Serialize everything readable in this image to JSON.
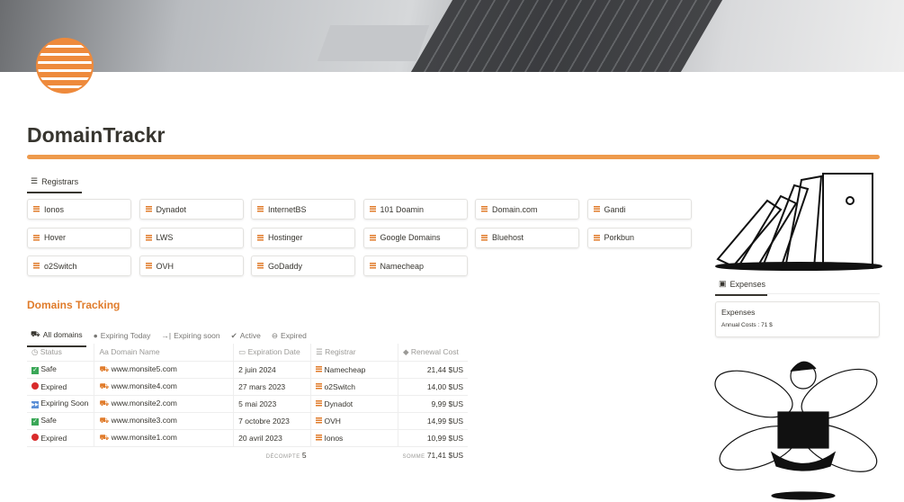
{
  "title": "DomainTrackr",
  "registrars": {
    "tab_label": "Registrars",
    "items": [
      "Ionos",
      "Dynadot",
      "InternetBS",
      "101 Doamin",
      "Domain.com",
      "Gandi",
      "Hover",
      "LWS",
      "Hostinger",
      "Google Domains",
      "Bluehost",
      "Porkbun",
      "o2Switch",
      "OVH",
      "GoDaddy",
      "Namecheap"
    ]
  },
  "tracking": {
    "heading": "Domains Tracking",
    "views": [
      "All domains",
      "Expiring Today",
      "Expiring soon",
      "Active",
      "Expired"
    ],
    "columns": [
      "Status",
      "Domain Name",
      "Expiration Date",
      "Registrar",
      "Renewal Cost"
    ],
    "rows": [
      {
        "status": "Safe",
        "status_icon": "check-box",
        "domain": "www.monsite5.com",
        "date": "2 juin 2024",
        "registrar": "Namecheap",
        "cost": "21,44 $US"
      },
      {
        "status": "Expired",
        "status_icon": "red-circle",
        "domain": "www.monsite4.com",
        "date": "27 mars 2023",
        "registrar": "o2Switch",
        "cost": "14,00 $US"
      },
      {
        "status": "Expiring Soon",
        "status_icon": "fast-forward",
        "domain": "www.monsite2.com",
        "date": "5 mai 2023",
        "registrar": "Dynadot",
        "cost": "9,99 $US"
      },
      {
        "status": "Safe",
        "status_icon": "check-box",
        "domain": "www.monsite3.com",
        "date": "7 octobre 2023",
        "registrar": "OVH",
        "cost": "14,99 $US"
      },
      {
        "status": "Expired",
        "status_icon": "red-circle",
        "domain": "www.monsite1.com",
        "date": "20 avril 2023",
        "registrar": "Ionos",
        "cost": "10,99 $US"
      }
    ],
    "footer": {
      "count_label": "DÉCOMPTE",
      "count": "5",
      "sum_label": "SOMME",
      "sum": "71,41 $US"
    }
  },
  "expenses": {
    "tab_label": "Expenses",
    "card_title": "Expenses",
    "annual": "Annual Costs : 71 $"
  },
  "colors": {
    "accent": "#e07b2a",
    "brush": "#ee9a4c"
  }
}
